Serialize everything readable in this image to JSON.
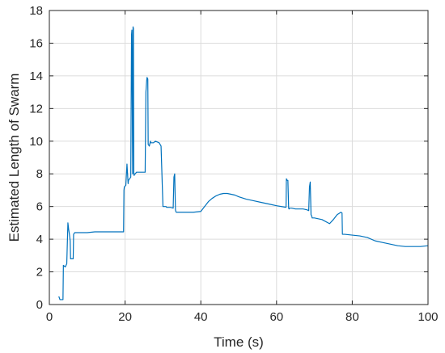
{
  "chart_data": {
    "type": "line",
    "title": "",
    "xlabel": "Time (s)",
    "ylabel": "Estimated Length of Swarm",
    "xlim": [
      0,
      100
    ],
    "ylim": [
      0,
      18
    ],
    "xticks": [
      0,
      20,
      40,
      60,
      80,
      100
    ],
    "yticks": [
      0,
      2,
      4,
      6,
      8,
      10,
      12,
      14,
      16,
      18
    ],
    "grid": true,
    "legend": "none",
    "color": "#0072BD",
    "series": [
      {
        "x": [
          2.5,
          2.8,
          3.6,
          3.7,
          3.7,
          4.2,
          4.6,
          4.9,
          5.1,
          5.3,
          5.4,
          5.5,
          5.6,
          5.9,
          6.3,
          6.4,
          6.7,
          8,
          10,
          12,
          14,
          16,
          18,
          19.6,
          19.7,
          19.8,
          20.2,
          20.5,
          20.6,
          20.8,
          20.9,
          21.2,
          21.5,
          21.7,
          21.8,
          22,
          22.1,
          22.2,
          22.3,
          22.4,
          22.5,
          22.7,
          23,
          24,
          25.3,
          25.5,
          25.7,
          25.8,
          26,
          26.1,
          26.4,
          26.5,
          26.6,
          26.7,
          26.8,
          27,
          27.5,
          28,
          29,
          29.5,
          30,
          30.3,
          30.5,
          30.8,
          31,
          32,
          32.7,
          32.9,
          33.1,
          33.3,
          33.4,
          33.5,
          34,
          36,
          38,
          40,
          41,
          42,
          43,
          44,
          45,
          46,
          47,
          48,
          49,
          50,
          52,
          54,
          56,
          58,
          60,
          62,
          62.5,
          62.6,
          62.8,
          63,
          63.2,
          63.3,
          63.4,
          64,
          65,
          66,
          67,
          68,
          68.5,
          68.7,
          68.9,
          69.1,
          69.3,
          69.4,
          70,
          72,
          74,
          75,
          76,
          77,
          77.3,
          77.4,
          78,
          80,
          82,
          84,
          86,
          88,
          90,
          92,
          94,
          96,
          98,
          100
        ],
        "y": [
          0.5,
          0.3,
          0.3,
          2.3,
          2.4,
          2.3,
          2.5,
          5.0,
          4.6,
          4.3,
          4.1,
          3.9,
          2.8,
          2.8,
          2.8,
          4.3,
          4.4,
          4.4,
          4.4,
          4.45,
          4.45,
          4.45,
          4.45,
          4.45,
          7.0,
          7.2,
          7.3,
          8.6,
          8.2,
          7.4,
          7.6,
          7.7,
          7.8,
          16.5,
          16.8,
          8.0,
          17.0,
          16.9,
          8.0,
          7.9,
          8.0,
          8.0,
          8.1,
          8.1,
          8.1,
          13.0,
          13.7,
          13.9,
          13.8,
          9.8,
          9.7,
          9.8,
          9.9,
          10.0,
          9.9,
          9.9,
          9.9,
          10.0,
          9.9,
          9.7,
          6.0,
          6.0,
          6.0,
          6.0,
          5.95,
          5.95,
          5.9,
          7.8,
          8.0,
          5.8,
          5.7,
          5.65,
          5.65,
          5.65,
          5.65,
          5.7,
          6.0,
          6.3,
          6.5,
          6.65,
          6.75,
          6.8,
          6.8,
          6.75,
          6.7,
          6.6,
          6.45,
          6.35,
          6.25,
          6.15,
          6.05,
          5.97,
          5.95,
          7.7,
          7.6,
          7.6,
          5.9,
          5.85,
          5.9,
          5.9,
          5.85,
          5.85,
          5.85,
          5.8,
          5.75,
          7.2,
          7.5,
          5.5,
          5.4,
          5.3,
          5.3,
          5.2,
          4.95,
          5.2,
          5.5,
          5.65,
          5.6,
          4.3,
          4.3,
          4.25,
          4.2,
          4.1,
          3.9,
          3.8,
          3.7,
          3.6,
          3.55,
          3.55,
          3.55,
          3.6
        ]
      }
    ]
  }
}
